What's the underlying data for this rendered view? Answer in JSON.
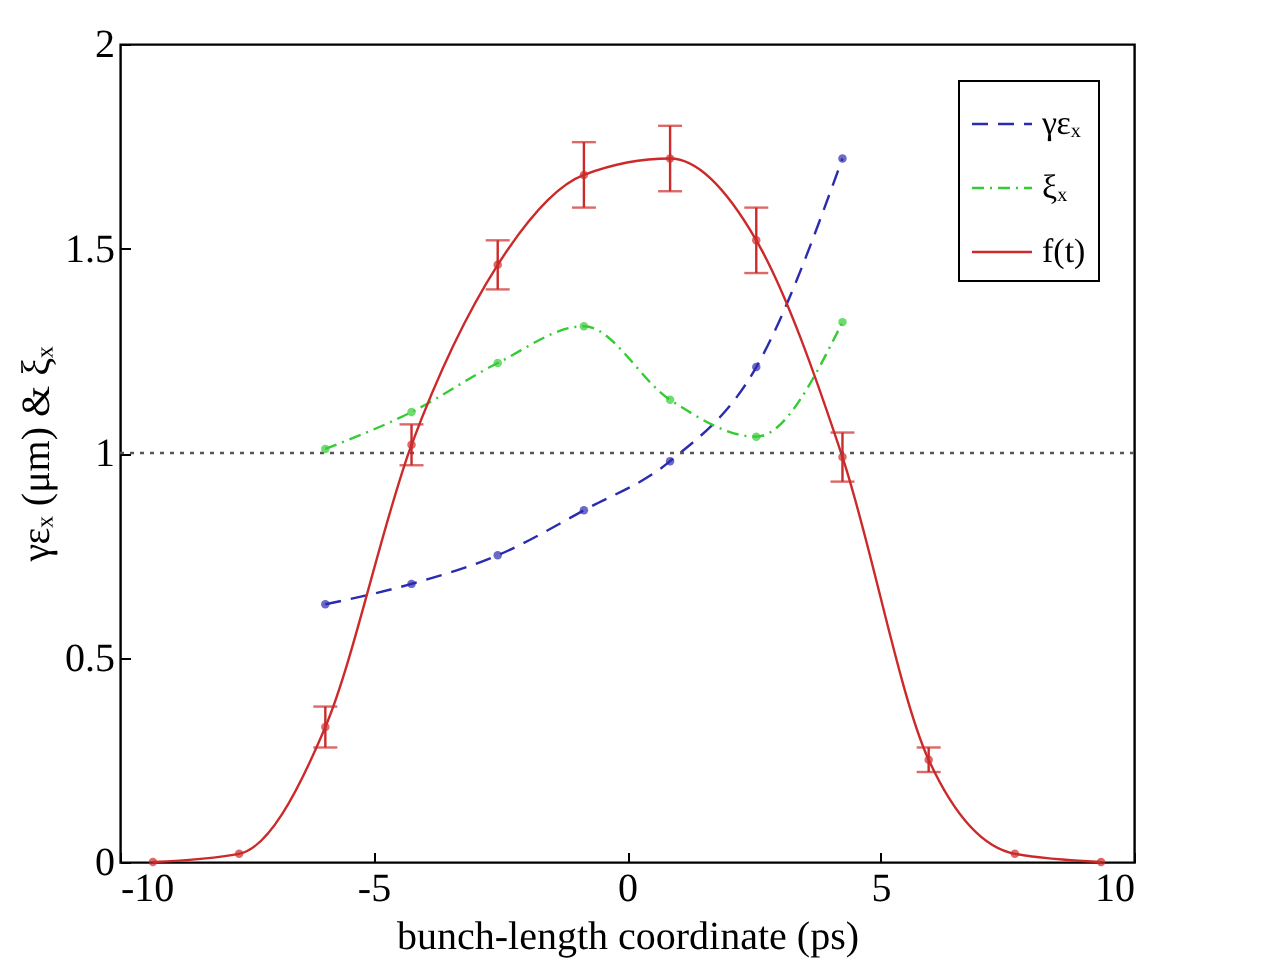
{
  "chart_data": {
    "type": "line",
    "xlabel": "bunch-length coordinate (ps)",
    "ylabel": "γεₓ (μm) & ξₓ",
    "xlim": [
      -10,
      10
    ],
    "xticks": [
      -10,
      -5,
      0,
      5,
      10
    ],
    "ylim": [
      0,
      2
    ],
    "yticks": [
      0,
      0.5,
      1,
      1.5,
      2
    ],
    "legend": "top right",
    "marker": "circle",
    "grid": false,
    "ref_lines": [
      {
        "axis": "y",
        "value": 1,
        "color": "#555555",
        "line_style": "dotted"
      }
    ],
    "series": [
      {
        "name": "γεₓ",
        "color": "#2b2bb0",
        "line_style": "dashed",
        "x": [
          -5.95,
          -4.25,
          -2.55,
          -0.85,
          0.85,
          2.55,
          4.25
        ],
        "values": [
          0.63,
          0.68,
          0.75,
          0.86,
          0.98,
          1.21,
          1.72
        ]
      },
      {
        "name": "ξₓ",
        "color": "#33cc33",
        "line_style": "dashdot",
        "x": [
          -5.95,
          -4.25,
          -2.55,
          -0.85,
          0.85,
          2.55,
          4.25
        ],
        "values": [
          1.01,
          1.1,
          1.22,
          1.31,
          1.13,
          1.04,
          1.32
        ]
      },
      {
        "name": "f(t)",
        "color": "#cc2a2a",
        "line_style": "solid",
        "x": [
          -9.35,
          -7.65,
          -5.95,
          -4.25,
          -2.55,
          -0.85,
          0.85,
          2.55,
          4.25,
          5.95,
          7.65,
          9.35
        ],
        "values": [
          0,
          0.02,
          0.33,
          1.02,
          1.46,
          1.68,
          1.72,
          1.52,
          0.99,
          0.25,
          0.02,
          0
        ],
        "errors": [
          null,
          null,
          0.05,
          0.05,
          0.06,
          0.08,
          0.08,
          0.08,
          0.06,
          0.03,
          null,
          null
        ]
      }
    ]
  }
}
